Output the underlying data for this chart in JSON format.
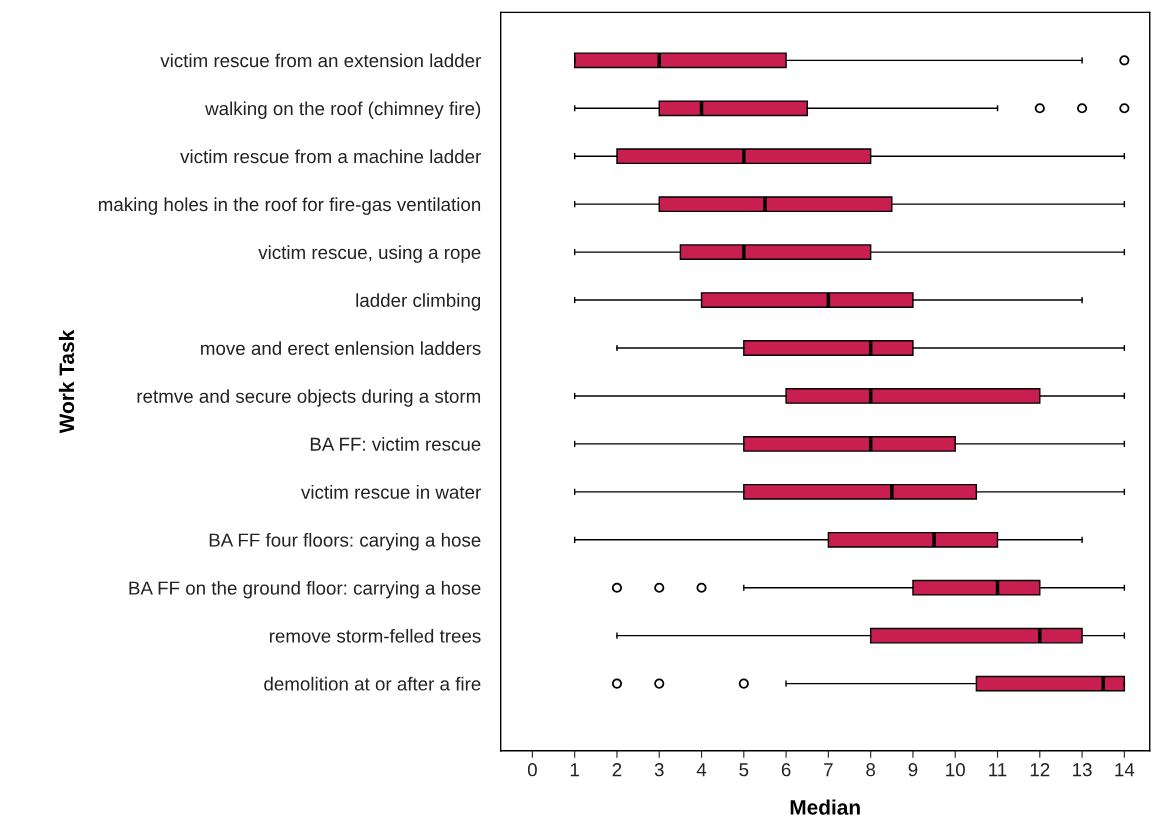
{
  "chart_data": {
    "type": "box",
    "orientation": "horizontal",
    "xlabel": "Median",
    "ylabel": "Work Task",
    "color": "#c81e50",
    "categories": [
      "victim rescue from an extension ladder",
      "walking on the roof (chimney fire)",
      "victim rescue from a machine ladder",
      "making holes in the roof for fire-gas ventilation",
      "victim rescue, using a rope",
      "ladder climbing",
      "move and erect enlension ladders",
      "retmve and secure objects during a storm",
      "BA FF: victim rescue",
      "victim rescue in water",
      "BA FF four floors: carying a hose",
      "BA FF on the ground floor: carrying a hose",
      "remove storm-felled trees",
      "demolition at or after a fire"
    ],
    "boxes": [
      {
        "low": 1,
        "q1": 1,
        "median": 3,
        "q3": 6,
        "high": 13,
        "outliers": [
          14
        ]
      },
      {
        "low": 1,
        "q1": 3,
        "median": 4,
        "q3": 6.5,
        "high": 11,
        "outliers": [
          12,
          13,
          14
        ]
      },
      {
        "low": 1,
        "q1": 2,
        "median": 5,
        "q3": 8,
        "high": 14
      },
      {
        "low": 1,
        "q1": 3,
        "median": 5.5,
        "q3": 8.5,
        "high": 14
      },
      {
        "low": 1,
        "q1": 3.5,
        "median": 5,
        "q3": 8,
        "high": 14
      },
      {
        "low": 1,
        "q1": 4,
        "median": 7,
        "q3": 9,
        "high": 13
      },
      {
        "low": 2,
        "q1": 5,
        "median": 8,
        "q3": 9,
        "high": 14
      },
      {
        "low": 1,
        "q1": 6,
        "median": 8,
        "q3": 12,
        "high": 14
      },
      {
        "low": 1,
        "q1": 5,
        "median": 8,
        "q3": 10,
        "high": 14
      },
      {
        "low": 1,
        "q1": 5,
        "median": 8.5,
        "q3": 10.5,
        "high": 14
      },
      {
        "low": 1,
        "q1": 7,
        "median": 9.5,
        "q3": 11,
        "high": 13
      },
      {
        "low": 5,
        "q1": 9,
        "median": 11,
        "q3": 12,
        "high": 14,
        "outliers": [
          2,
          3,
          4
        ]
      },
      {
        "low": 2,
        "q1": 8,
        "median": 12,
        "q3": 13,
        "high": 14
      },
      {
        "low": 6,
        "q1": 10.5,
        "median": 13.5,
        "q3": 14,
        "high": 14,
        "outliers": [
          2,
          3,
          5
        ]
      }
    ],
    "xlim": [
      -0.75,
      14.6
    ],
    "xticks": [
      0,
      1,
      2,
      3,
      4,
      5,
      6,
      7,
      8,
      9,
      10,
      11,
      12,
      13,
      14
    ]
  }
}
